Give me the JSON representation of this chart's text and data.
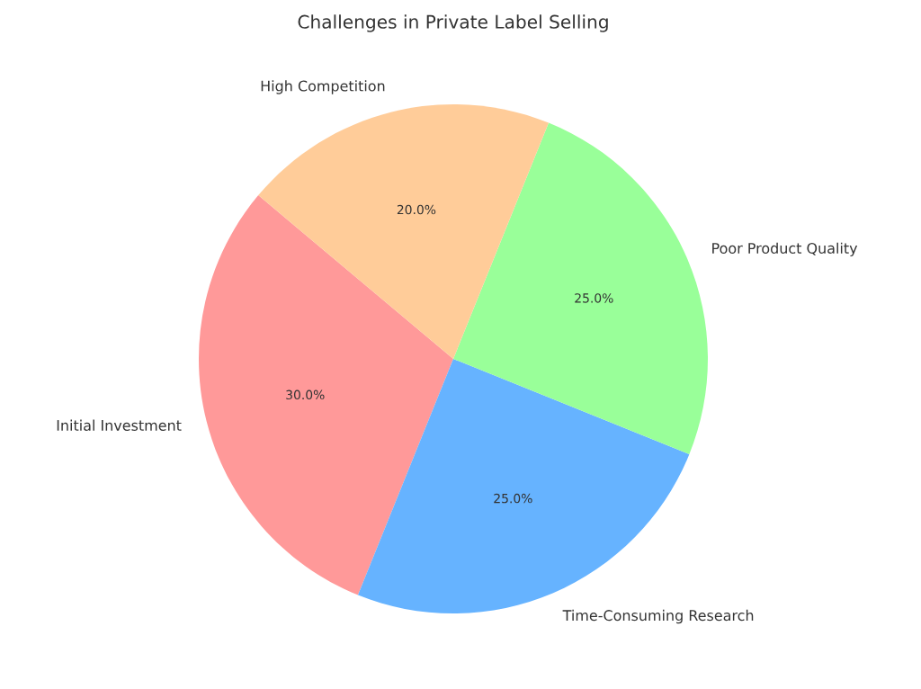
{
  "chart_data": {
    "type": "pie",
    "title": "Challenges in Private Label Selling",
    "categories": [
      "Initial Investment",
      "Time-Consuming Research",
      "Poor Product Quality",
      "High Competition"
    ],
    "values": [
      30,
      25,
      25,
      20
    ],
    "value_labels": [
      "30.0%",
      "25.0%",
      "25.0%",
      "20.0%"
    ],
    "colors": [
      "#ff9999",
      "#66b3ff",
      "#99ff99",
      "#ffcc99"
    ]
  }
}
